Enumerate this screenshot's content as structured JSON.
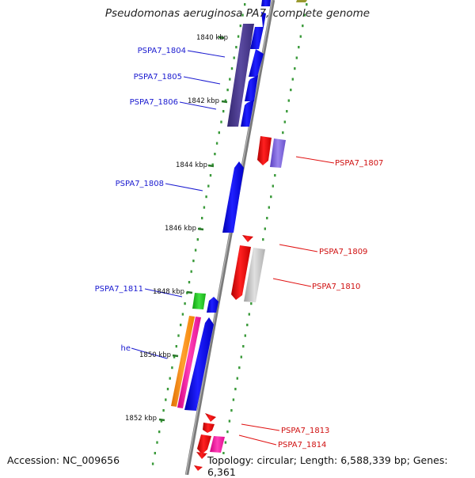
{
  "title": "Pseudomonas aeruginosa PA7, complete genome",
  "accession": "Accession: NC_009656",
  "summary": "Topology: circular; Length: 6,588,339 bp; Genes: 6,361",
  "ticks": [
    "1840 kbp",
    "1842 kbp",
    "1844 kbp",
    "1846 kbp",
    "1848 kbp",
    "1850 kbp",
    "1852 kbp"
  ],
  "genes_left": [
    {
      "label": "PSPA7_1804",
      "color": "#1414c8"
    },
    {
      "label": "PSPA7_1805",
      "color": "#1414c8"
    },
    {
      "label": "PSPA7_1806",
      "color": "#1414c8"
    },
    {
      "label": "PSPA7_1808",
      "color": "#1414c8"
    },
    {
      "label": "PSPA7_1811",
      "color": "#1414c8"
    },
    {
      "label": "he",
      "color": "#1414c8"
    }
  ],
  "genes_right": [
    {
      "label": "PSPA7_1807",
      "color": "#cc1010"
    },
    {
      "label": "PSPA7_1809",
      "color": "#cc1010"
    },
    {
      "label": "PSPA7_1810",
      "color": "#cc1010"
    },
    {
      "label": "PSPA7_1813",
      "color": "#cc1010"
    },
    {
      "label": "PSPA7_1814",
      "color": "#cc1010"
    }
  ],
  "colors": {
    "backbone": "#888888",
    "dots": "#3a9a3a",
    "tick": "#2a7a2a",
    "cds_fwd": "#0000f0",
    "cds_rev": "#ee0000",
    "operon": "#4a3a8a",
    "lavender": "#7b62d8",
    "gray": "#c4c4c4",
    "green": "#22cc22",
    "orange": "#ff8800",
    "pink": "#ff1aa0"
  }
}
